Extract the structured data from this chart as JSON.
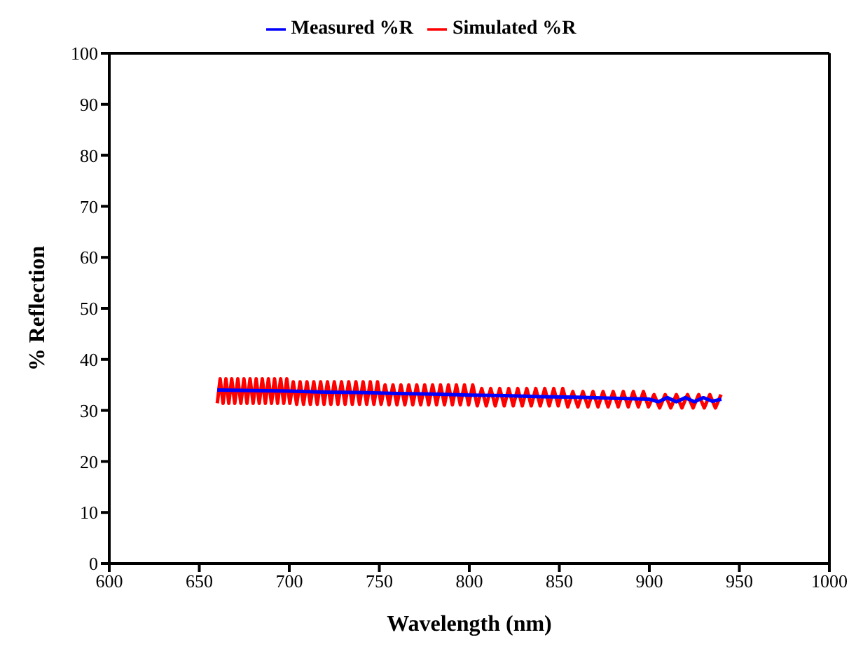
{
  "chart_data": {
    "type": "line",
    "xlabel": "Wavelength (nm)",
    "ylabel": "% Reflection",
    "xlim": [
      600,
      1000
    ],
    "xticks": [
      600,
      650,
      700,
      750,
      800,
      850,
      900,
      950,
      1000
    ],
    "ylim": [
      0,
      100
    ],
    "yticks": [
      0,
      10,
      20,
      30,
      40,
      50,
      60,
      70,
      80,
      90,
      100
    ],
    "grid": false,
    "legend": "top",
    "marker": "none",
    "line_style": "solid",
    "series": [
      {
        "name": "Simulated %R",
        "color": "#ff0000",
        "x": [
          660,
          661.6,
          663.2,
          664.8,
          666.4,
          668.0,
          669.7,
          671.4,
          673.1,
          674.8,
          676.5,
          678.2,
          679.9,
          681.6,
          683.3,
          685.0,
          686.7,
          688.4,
          690.1,
          691.8,
          693.5,
          695.2,
          696.9,
          698.6,
          700.3,
          702.2,
          704.1,
          706.0,
          707.9,
          709.8,
          711.7,
          713.6,
          715.5,
          717.4,
          719.3,
          721.2,
          723.1,
          725.0,
          727.0,
          729.0,
          731.0,
          733.0,
          735.0,
          737.0,
          739.0,
          741.0,
          743.0,
          745.0,
          747.0,
          749.0,
          751.0,
          753.2,
          755.4,
          757.6,
          759.8,
          762.0,
          764.2,
          766.4,
          768.6,
          770.8,
          773.0,
          775.2,
          777.4,
          779.6,
          781.8,
          784.0,
          786.2,
          788.4,
          790.6,
          792.8,
          795.0,
          797.3,
          799.6,
          801.9,
          804.4,
          806.9,
          809.4,
          811.9,
          814.4,
          816.9,
          819.4,
          821.9,
          824.4,
          826.9,
          829.4,
          831.9,
          834.4,
          836.9,
          839.4,
          841.9,
          844.4,
          846.9,
          849.4,
          851.9,
          854.7,
          857.5,
          860.3,
          863.1,
          865.9,
          868.7,
          871.5,
          874.3,
          877.1,
          879.9,
          882.7,
          885.5,
          888.3,
          891.1,
          893.9,
          896.7,
          899.5,
          902.6,
          905.7,
          908.8,
          911.9,
          915.0,
          918.1,
          921.2,
          924.3,
          927.4,
          930.5,
          933.6,
          936.7,
          939.8
        ],
        "values": [
          31.4,
          36.2,
          31.4,
          36.2,
          31.4,
          36.2,
          31.4,
          36.2,
          31.4,
          36.2,
          31.4,
          36.2,
          31.4,
          36.2,
          31.4,
          36.2,
          31.4,
          36.2,
          31.4,
          36.2,
          31.4,
          36.2,
          31.4,
          36.2,
          31.4,
          35.6,
          31.2,
          35.6,
          31.2,
          35.6,
          31.2,
          35.6,
          31.2,
          35.6,
          31.2,
          35.6,
          31.2,
          35.6,
          31.2,
          35.6,
          31.2,
          35.6,
          31.2,
          35.6,
          31.2,
          35.6,
          31.2,
          35.6,
          31.2,
          35.6,
          31.2,
          35.0,
          31.1,
          35.0,
          31.1,
          35.0,
          31.1,
          35.0,
          31.1,
          35.0,
          31.1,
          35.0,
          31.1,
          35.0,
          31.1,
          35.0,
          31.1,
          35.0,
          31.1,
          35.0,
          31.1,
          35.0,
          31.1,
          35.0,
          30.9,
          34.3,
          30.9,
          34.3,
          30.9,
          34.3,
          30.9,
          34.3,
          30.9,
          34.3,
          30.9,
          34.3,
          30.9,
          34.3,
          30.9,
          34.3,
          30.9,
          34.3,
          30.9,
          34.3,
          30.7,
          33.7,
          30.7,
          33.7,
          30.7,
          33.7,
          30.7,
          33.7,
          30.7,
          33.7,
          30.7,
          33.7,
          30.7,
          33.7,
          30.7,
          33.7,
          30.7,
          33.1,
          30.5,
          33.1,
          30.5,
          33.1,
          30.5,
          33.1,
          30.5,
          33.1,
          30.5,
          33.1,
          30.5,
          33.1
        ]
      },
      {
        "name": "Measured %R",
        "color": "#0000ff",
        "x": [
          660,
          680,
          700,
          720,
          740,
          760,
          780,
          800,
          820,
          840,
          860,
          880,
          900,
          905,
          910,
          915,
          920,
          925,
          930,
          935,
          940
        ],
        "values": [
          34.0,
          33.9,
          33.8,
          33.6,
          33.5,
          33.3,
          33.2,
          33.0,
          32.9,
          32.7,
          32.6,
          32.4,
          32.2,
          31.7,
          32.5,
          31.7,
          32.5,
          31.7,
          32.5,
          31.8,
          32.2
        ]
      }
    ]
  }
}
